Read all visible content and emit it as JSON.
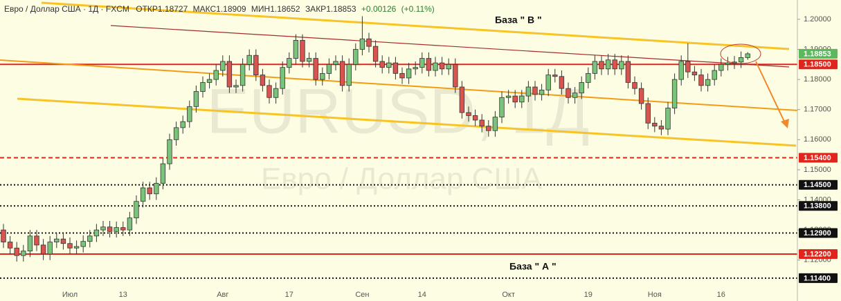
{
  "chart_data": {
    "type": "candlestick",
    "title": "Евро / Доллар США · 1Д · FXCM",
    "ohlc_labels": [
      "ОТКР",
      "МАКС",
      "МИН",
      "ЗАКР"
    ],
    "change": "+0.00126",
    "change_pct": "(+0.11%)",
    "watermark": [
      "EURUSD, 1Д",
      "Евро / Доллар США"
    ],
    "annotations": [
      "База  \" В \"",
      "База  \" А \""
    ],
    "categories": [
      null,
      null,
      null,
      null,
      null,
      null,
      null,
      null,
      null,
      null,
      "Июл",
      null,
      null,
      null,
      null,
      null,
      null,
      null,
      "13",
      null,
      null,
      null,
      null,
      null,
      null,
      null,
      null,
      null,
      null,
      null,
      null,
      null,
      null,
      "Авг",
      null,
      null,
      null,
      null,
      null,
      null,
      null,
      null,
      null,
      "17",
      null,
      null,
      null,
      null,
      null,
      null,
      null,
      null,
      null,
      null,
      "Сен",
      null,
      null,
      null,
      null,
      null,
      null,
      null,
      null,
      "14",
      null,
      null,
      null,
      null,
      null,
      null,
      null,
      null,
      null,
      null,
      null,
      null,
      "Окт",
      null,
      null,
      null,
      null,
      null,
      null,
      null,
      null,
      null,
      null,
      null,
      "19",
      null,
      null,
      null,
      null,
      null,
      null,
      null,
      null,
      null,
      "Ноя",
      null,
      null,
      null,
      null,
      null,
      null,
      null,
      null,
      null,
      "16",
      null,
      null,
      null,
      null
    ],
    "open": [
      1.13,
      1.126,
      1.124,
      1.1215,
      1.123,
      1.128,
      1.125,
      1.122,
      1.126,
      1.127,
      1.1255,
      1.124,
      1.1245,
      1.1262,
      1.128,
      1.13,
      1.131,
      1.1295,
      1.1308,
      1.13,
      1.134,
      1.1395,
      1.144,
      1.142,
      1.1455,
      1.152,
      1.16,
      1.164,
      1.166,
      1.171,
      1.176,
      1.179,
      1.18,
      1.183,
      1.186,
      1.1775,
      1.178,
      1.185,
      1.188,
      1.1815,
      1.178,
      1.174,
      1.177,
      1.184,
      1.187,
      1.193,
      1.186,
      1.187,
      1.18,
      1.182,
      1.185,
      1.186,
      1.178,
      1.185,
      1.19,
      1.1935,
      1.191,
      1.186,
      1.184,
      1.1855,
      1.182,
      1.1805,
      1.1835,
      1.184,
      1.187,
      1.183,
      1.1855,
      1.1835,
      1.185,
      1.1775,
      1.169,
      1.168,
      1.1665,
      1.1645,
      1.163,
      1.1675,
      1.174,
      1.1745,
      1.1725,
      1.1745,
      1.1775,
      1.175,
      1.1765,
      1.1815,
      1.181,
      1.177,
      1.174,
      1.1755,
      1.179,
      1.182,
      1.186,
      1.1835,
      1.1865,
      1.1835,
      1.186,
      1.179,
      1.177,
      1.172,
      1.1655,
      1.1645,
      1.1635,
      1.1705,
      1.18,
      1.186,
      1.1825,
      1.1815,
      1.178,
      1.18,
      1.183,
      1.185,
      1.1855,
      1.1858,
      1.18727
    ],
    "high": [
      1.132,
      1.128,
      1.126,
      1.125,
      1.13,
      1.13,
      1.127,
      1.128,
      1.129,
      1.129,
      1.1275,
      1.1265,
      1.1282,
      1.13,
      1.132,
      1.133,
      1.133,
      1.1328,
      1.1328,
      1.136,
      1.1415,
      1.146,
      1.146,
      1.1475,
      1.154,
      1.162,
      1.166,
      1.168,
      1.173,
      1.178,
      1.181,
      1.182,
      1.185,
      1.188,
      1.188,
      1.18,
      1.187,
      1.19,
      1.19,
      1.1835,
      1.18,
      1.179,
      1.186,
      1.189,
      1.195,
      1.195,
      1.189,
      1.189,
      1.184,
      1.187,
      1.188,
      1.188,
      1.187,
      1.192,
      1.201,
      1.1955,
      1.193,
      1.188,
      1.1875,
      1.1875,
      1.184,
      1.1855,
      1.186,
      1.189,
      1.189,
      1.1875,
      1.1875,
      1.187,
      1.187,
      1.1795,
      1.171,
      1.17,
      1.1685,
      1.1665,
      1.1695,
      1.176,
      1.1765,
      1.1765,
      1.1765,
      1.1795,
      1.1795,
      1.1785,
      1.1835,
      1.1835,
      1.183,
      1.179,
      1.1775,
      1.181,
      1.184,
      1.188,
      1.188,
      1.1885,
      1.1885,
      1.188,
      1.188,
      1.181,
      1.179,
      1.174,
      1.1675,
      1.1665,
      1.1725,
      1.182,
      1.188,
      1.192,
      1.1845,
      1.1835,
      1.182,
      1.185,
      1.187,
      1.1875,
      1.1878,
      1.1893,
      1.18909
    ],
    "low": [
      1.124,
      1.122,
      1.1195,
      1.1195,
      1.121,
      1.123,
      1.12,
      1.12,
      1.124,
      1.1235,
      1.122,
      1.122,
      1.1225,
      1.1242,
      1.126,
      1.128,
      1.1275,
      1.1275,
      1.128,
      1.128,
      1.132,
      1.1375,
      1.14,
      1.14,
      1.1435,
      1.15,
      1.158,
      1.162,
      1.164,
      1.169,
      1.174,
      1.177,
      1.178,
      1.181,
      1.1755,
      1.1755,
      1.176,
      1.183,
      1.1795,
      1.176,
      1.172,
      1.172,
      1.175,
      1.182,
      1.185,
      1.184,
      1.184,
      1.178,
      1.178,
      1.18,
      1.183,
      1.176,
      1.176,
      1.183,
      1.188,
      1.189,
      1.184,
      1.182,
      1.182,
      1.18,
      1.1785,
      1.1785,
      1.1815,
      1.182,
      1.181,
      1.181,
      1.1815,
      1.1815,
      1.1755,
      1.167,
      1.166,
      1.1645,
      1.1625,
      1.161,
      1.161,
      1.1655,
      1.172,
      1.1705,
      1.1705,
      1.1725,
      1.173,
      1.173,
      1.1745,
      1.179,
      1.175,
      1.172,
      1.172,
      1.1735,
      1.177,
      1.18,
      1.1815,
      1.1815,
      1.1815,
      1.1815,
      1.177,
      1.175,
      1.17,
      1.1635,
      1.1625,
      1.1615,
      1.1615,
      1.1685,
      1.178,
      1.1805,
      1.1795,
      1.176,
      1.176,
      1.178,
      1.181,
      1.183,
      1.1835,
      1.1838,
      1.18652
    ],
    "close": [
      1.126,
      1.124,
      1.1215,
      1.123,
      1.128,
      1.125,
      1.122,
      1.126,
      1.127,
      1.1255,
      1.124,
      1.1245,
      1.1262,
      1.128,
      1.13,
      1.131,
      1.1295,
      1.1308,
      1.13,
      1.134,
      1.1395,
      1.144,
      1.142,
      1.1455,
      1.152,
      1.16,
      1.164,
      1.166,
      1.171,
      1.176,
      1.179,
      1.18,
      1.183,
      1.186,
      1.1775,
      1.178,
      1.185,
      1.188,
      1.1815,
      1.178,
      1.174,
      1.177,
      1.184,
      1.187,
      1.193,
      1.186,
      1.187,
      1.18,
      1.182,
      1.185,
      1.186,
      1.178,
      1.185,
      1.19,
      1.1935,
      1.191,
      1.186,
      1.184,
      1.1855,
      1.182,
      1.1805,
      1.1835,
      1.184,
      1.187,
      1.183,
      1.1855,
      1.1835,
      1.185,
      1.1775,
      1.169,
      1.168,
      1.1665,
      1.1645,
      1.163,
      1.1675,
      1.174,
      1.1745,
      1.1725,
      1.1745,
      1.1775,
      1.175,
      1.1765,
      1.1815,
      1.181,
      1.177,
      1.174,
      1.1755,
      1.179,
      1.182,
      1.186,
      1.1835,
      1.1865,
      1.1835,
      1.186,
      1.179,
      1.177,
      1.172,
      1.1655,
      1.1645,
      1.1635,
      1.1705,
      1.18,
      1.186,
      1.1825,
      1.1815,
      1.178,
      1.18,
      1.183,
      1.185,
      1.1855,
      1.1858,
      1.18727,
      1.18853
    ],
    "up_color": "#79c37b",
    "down_color": "#d9534f",
    "last_price_color": "#5cb85c",
    "ylim": [
      1.1064,
      1.2064
    ],
    "yticks": [
      {
        "value": 1.12,
        "label": "1.12000"
      },
      {
        "value": 1.13,
        "label": "1.13000"
      },
      {
        "value": 1.14,
        "label": "1.14000"
      },
      {
        "value": 1.15,
        "label": "1.15000"
      },
      {
        "value": 1.16,
        "label": "1.16000"
      },
      {
        "value": 1.17,
        "label": "1.17000"
      },
      {
        "value": 1.18,
        "label": "1.18000"
      },
      {
        "value": 1.19,
        "label": "1.19000"
      },
      {
        "value": 1.2,
        "label": "1.20000"
      }
    ],
    "grid": false,
    "levels": [
      {
        "value": 1.185,
        "label": "1.18500",
        "color": "#e0261c",
        "style": "solid"
      },
      {
        "value": 1.154,
        "label": "1.15400",
        "color": "#e0261c",
        "style": "dashed"
      },
      {
        "value": 1.145,
        "label": "1.14500",
        "color": "#111111",
        "style": "dotted"
      },
      {
        "value": 1.138,
        "label": "1.13800",
        "color": "#111111",
        "style": "dotted"
      },
      {
        "value": 1.129,
        "label": "1.12900",
        "color": "#111111",
        "style": "dotted"
      },
      {
        "value": 1.122,
        "label": "1.12200",
        "color": "#e0261c",
        "style": "solid"
      },
      {
        "value": 1.114,
        "label": "1.11400",
        "color": "#111111",
        "style": "dotted"
      }
    ]
  }
}
